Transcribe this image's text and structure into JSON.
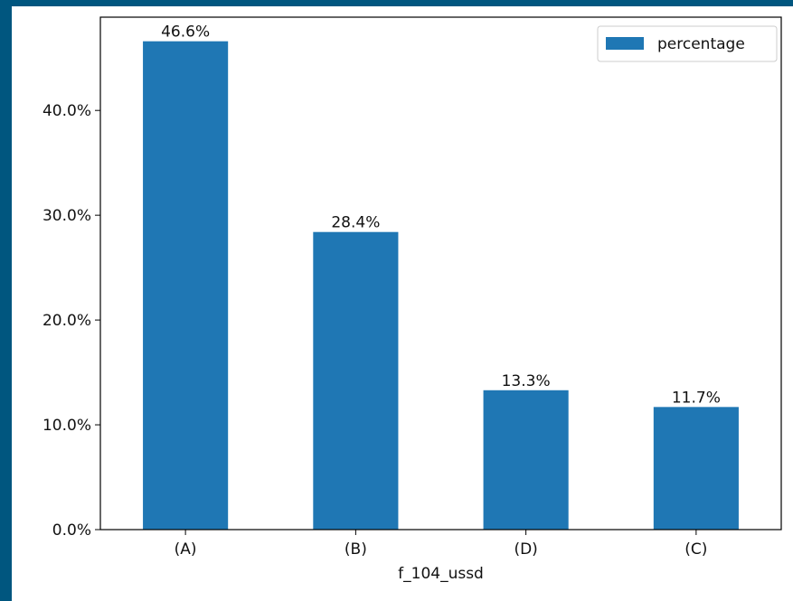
{
  "chart_data": {
    "type": "bar",
    "categories": [
      "(A)",
      "(B)",
      "(D)",
      "(C)"
    ],
    "series": [
      {
        "name": "percentage",
        "values": [
          46.6,
          28.4,
          13.3,
          11.7
        ],
        "color": "#1f77b4"
      }
    ],
    "value_labels": [
      "46.6%",
      "28.4%",
      "13.3%",
      "11.7%"
    ],
    "xlabel": "f_104_ussd",
    "ylabel": "",
    "ylim": [
      0,
      48.9
    ],
    "yticks": [
      0,
      10,
      20,
      30,
      40
    ],
    "ytick_labels": [
      "0.0%",
      "10.0%",
      "20.0%",
      "30.0%",
      "40.0%"
    ],
    "grid": false,
    "legend": {
      "position": "top-right",
      "entries": [
        "percentage"
      ]
    }
  }
}
